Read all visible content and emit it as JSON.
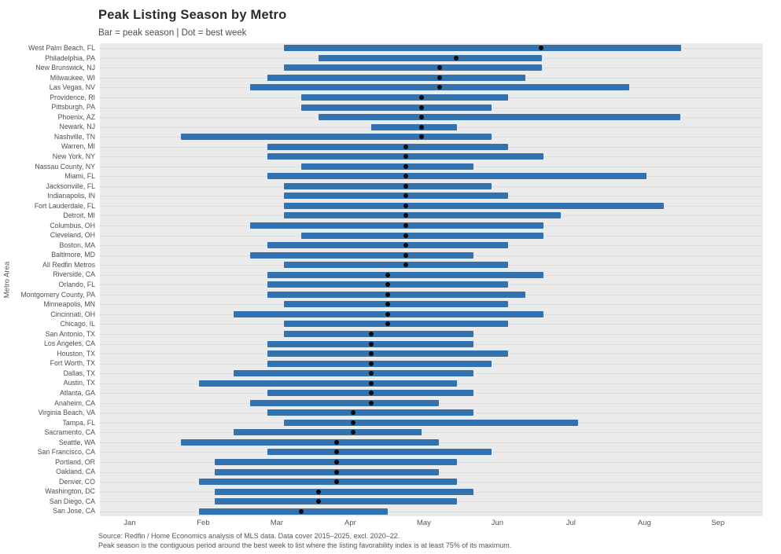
{
  "header": {
    "title": "Peak Listing Season by Metro",
    "subtitle": "Bar = peak season | Dot = best week"
  },
  "axes": {
    "y_label": "Metro Area"
  },
  "caption": {
    "line1": "Source: Redfin / Home Economics analysis of MLS data. Data cover 2015–2025, excl. 2020–22.",
    "line2": "Peak season is the contiguous period around the best week to list where the listing favorability index is at least 75% of its maximum."
  },
  "colors": {
    "bar": "#3273af",
    "dot": "#0a0a0a",
    "panel_bg": "#ebebeb",
    "grid": "#d2d2d2"
  },
  "chart_data": {
    "type": "bar",
    "subtype": "horizontal-range-with-dot",
    "title": "Peak Listing Season by Metro",
    "subtitle": "Bar = peak season | Dot = best week",
    "xlabel": "",
    "ylabel": "Metro Area",
    "x_unit": "months since Jan 1 (0 = Jan 1, 1 = Feb 1, ...)",
    "xlim": [
      -0.406,
      8.612
    ],
    "x_tick_values": [
      0,
      1,
      2,
      3,
      4,
      5,
      6,
      7,
      8
    ],
    "x_tick_labels": [
      "Jan",
      "Feb",
      "Mar",
      "Apr",
      "May",
      "Jun",
      "Jul",
      "Aug",
      "Sep"
    ],
    "grid": "dotted horizontal row lines",
    "legend_position": "none",
    "series": [
      {
        "metro": "West Palm Beach, FL",
        "start_month": 2.1,
        "end_month": 7.5,
        "best_week_month": 5.6
      },
      {
        "metro": "Philadelphia, PA",
        "start_month": 2.57,
        "end_month": 5.61,
        "best_week_month": 4.44
      },
      {
        "metro": "New Brunswick, NJ",
        "start_month": 2.1,
        "end_month": 5.61,
        "best_week_month": 4.22
      },
      {
        "metro": "Milwaukee, WI",
        "start_month": 1.87,
        "end_month": 5.38,
        "best_week_month": 4.22
      },
      {
        "metro": "Las Vegas, NV",
        "start_month": 1.64,
        "end_month": 6.79,
        "best_week_month": 4.22
      },
      {
        "metro": "Providence, RI",
        "start_month": 2.33,
        "end_month": 5.15,
        "best_week_month": 3.97
      },
      {
        "metro": "Pittsburgh, PA",
        "start_month": 2.33,
        "end_month": 4.92,
        "best_week_month": 3.97
      },
      {
        "metro": "Phoenix, AZ",
        "start_month": 2.57,
        "end_month": 7.49,
        "best_week_month": 3.97
      },
      {
        "metro": "Newark, NJ",
        "start_month": 3.28,
        "end_month": 4.45,
        "best_week_month": 3.97
      },
      {
        "metro": "Nashville, TN",
        "start_month": 0.7,
        "end_month": 4.92,
        "best_week_month": 3.97
      },
      {
        "metro": "Warren, MI",
        "start_month": 1.87,
        "end_month": 5.15,
        "best_week_month": 3.75
      },
      {
        "metro": "New York, NY",
        "start_month": 1.87,
        "end_month": 5.63,
        "best_week_month": 3.75
      },
      {
        "metro": "Nassau County, NY",
        "start_month": 2.33,
        "end_month": 4.68,
        "best_week_month": 3.75
      },
      {
        "metro": "Miami, FL",
        "start_month": 1.87,
        "end_month": 7.03,
        "best_week_month": 3.75
      },
      {
        "metro": "Jacksonville, FL",
        "start_month": 2.1,
        "end_month": 4.92,
        "best_week_month": 3.75
      },
      {
        "metro": "Indianapolis, IN",
        "start_month": 2.1,
        "end_month": 5.15,
        "best_week_month": 3.75
      },
      {
        "metro": "Fort Lauderdale, FL",
        "start_month": 2.1,
        "end_month": 7.26,
        "best_week_month": 3.75
      },
      {
        "metro": "Detroit, MI",
        "start_month": 2.1,
        "end_month": 5.86,
        "best_week_month": 3.75
      },
      {
        "metro": "Columbus, OH",
        "start_month": 1.64,
        "end_month": 5.63,
        "best_week_month": 3.75
      },
      {
        "metro": "Cleveland, OH",
        "start_month": 2.33,
        "end_month": 5.63,
        "best_week_month": 3.75
      },
      {
        "metro": "Boston, MA",
        "start_month": 1.87,
        "end_month": 5.15,
        "best_week_month": 3.75
      },
      {
        "metro": "Baltimore, MD",
        "start_month": 1.64,
        "end_month": 4.68,
        "best_week_month": 3.75
      },
      {
        "metro": "All Redfin Metros",
        "start_month": 2.1,
        "end_month": 5.15,
        "best_week_month": 3.75
      },
      {
        "metro": "Riverside, CA",
        "start_month": 1.87,
        "end_month": 5.63,
        "best_week_month": 3.51
      },
      {
        "metro": "Orlando, FL",
        "start_month": 1.87,
        "end_month": 5.15,
        "best_week_month": 3.51
      },
      {
        "metro": "Montgomery County, PA",
        "start_month": 1.87,
        "end_month": 5.38,
        "best_week_month": 3.51
      },
      {
        "metro": "Minneapolis, MN",
        "start_month": 2.1,
        "end_month": 5.15,
        "best_week_month": 3.51
      },
      {
        "metro": "Cincinnati, OH",
        "start_month": 1.41,
        "end_month": 5.63,
        "best_week_month": 3.51
      },
      {
        "metro": "Chicago, IL",
        "start_month": 2.1,
        "end_month": 5.15,
        "best_week_month": 3.51
      },
      {
        "metro": "San Antonio, TX",
        "start_month": 2.1,
        "end_month": 4.68,
        "best_week_month": 3.28
      },
      {
        "metro": "Los Angeles, CA",
        "start_month": 1.87,
        "end_month": 4.68,
        "best_week_month": 3.28
      },
      {
        "metro": "Houston, TX",
        "start_month": 1.87,
        "end_month": 5.15,
        "best_week_month": 3.28
      },
      {
        "metro": "Fort Worth, TX",
        "start_month": 1.87,
        "end_month": 4.92,
        "best_week_month": 3.28
      },
      {
        "metro": "Dallas, TX",
        "start_month": 1.41,
        "end_month": 4.68,
        "best_week_month": 3.28
      },
      {
        "metro": "Austin, TX",
        "start_month": 0.94,
        "end_month": 4.45,
        "best_week_month": 3.28
      },
      {
        "metro": "Atlanta, GA",
        "start_month": 1.87,
        "end_month": 4.68,
        "best_week_month": 3.28
      },
      {
        "metro": "Anaheim, CA",
        "start_month": 1.64,
        "end_month": 4.21,
        "best_week_month": 3.28
      },
      {
        "metro": "Virginia Beach, VA",
        "start_month": 1.87,
        "end_month": 4.68,
        "best_week_month": 3.04
      },
      {
        "metro": "Tampa, FL",
        "start_month": 2.1,
        "end_month": 6.1,
        "best_week_month": 3.04
      },
      {
        "metro": "Sacramento, CA",
        "start_month": 1.41,
        "end_month": 3.97,
        "best_week_month": 3.04
      },
      {
        "metro": "Seattle, WA",
        "start_month": 0.7,
        "end_month": 4.21,
        "best_week_month": 2.81
      },
      {
        "metro": "San Francisco, CA",
        "start_month": 1.87,
        "end_month": 4.92,
        "best_week_month": 2.81
      },
      {
        "metro": "Portland, OR",
        "start_month": 1.16,
        "end_month": 4.45,
        "best_week_month": 2.81
      },
      {
        "metro": "Oakland, CA",
        "start_month": 1.16,
        "end_month": 4.21,
        "best_week_month": 2.81
      },
      {
        "metro": "Denver, CO",
        "start_month": 0.94,
        "end_month": 4.45,
        "best_week_month": 2.81
      },
      {
        "metro": "Washington, DC",
        "start_month": 1.16,
        "end_month": 4.68,
        "best_week_month": 2.57
      },
      {
        "metro": "San Diego, CA",
        "start_month": 1.16,
        "end_month": 4.45,
        "best_week_month": 2.57
      },
      {
        "metro": "San Jose, CA",
        "start_month": 0.94,
        "end_month": 3.51,
        "best_week_month": 2.33
      }
    ]
  }
}
